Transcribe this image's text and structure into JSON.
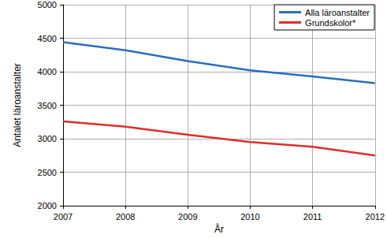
{
  "chart_data": {
    "type": "line",
    "x_label": "År",
    "y_label": "Antalet läroanstalter",
    "x": [
      2007,
      2008,
      2009,
      2010,
      2011,
      2012
    ],
    "series": [
      {
        "name": "Alla läroanstalter",
        "color": "#2a6ebb",
        "values": [
          4440,
          4320,
          4160,
          4020,
          3930,
          3830
        ]
      },
      {
        "name": "Grundskolor*",
        "color": "#d9302c",
        "values": [
          3260,
          3180,
          3060,
          2950,
          2880,
          2750
        ]
      }
    ],
    "xlim": [
      2007,
      2012
    ],
    "xticks": [
      2007,
      2008,
      2009,
      2010,
      2011,
      2012
    ],
    "ylim": [
      2000,
      5000
    ],
    "yticks": [
      2000,
      2500,
      3000,
      3500,
      4000,
      4500,
      5000
    ],
    "grid": true,
    "legend": "upper right"
  }
}
